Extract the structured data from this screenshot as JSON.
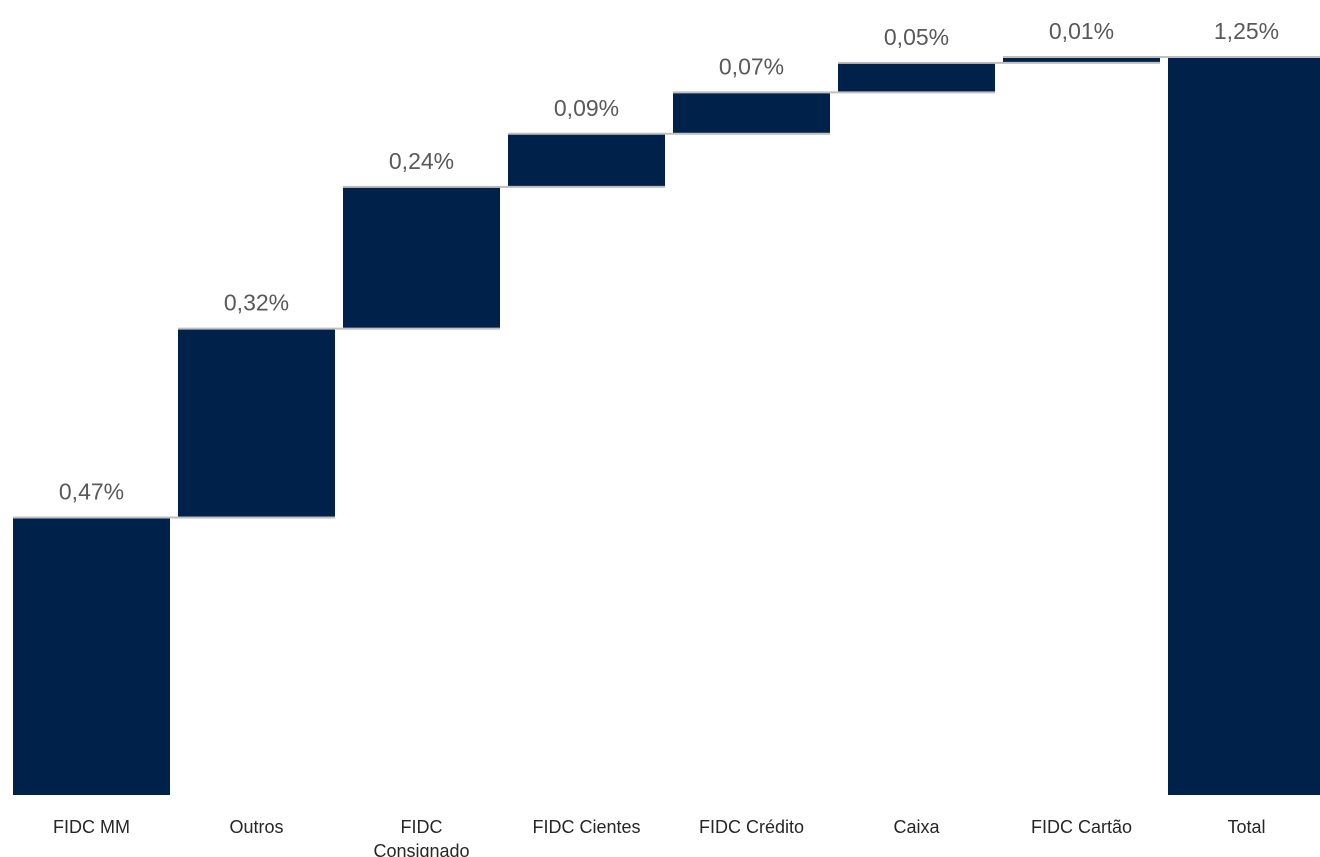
{
  "chart_data": {
    "type": "waterfall",
    "categories": [
      "FIDC MM",
      "Outros",
      "FIDC Consignado",
      "FIDC Cientes",
      "FIDC Crédito",
      "Caixa",
      "FIDC Cartão",
      "Total"
    ],
    "values": [
      0.47,
      0.32,
      0.24,
      0.09,
      0.07,
      0.05,
      0.01,
      1.25
    ],
    "value_labels": [
      "0,47%",
      "0,32%",
      "0,24%",
      "0,09%",
      "0,07%",
      "0,05%",
      "0,01%",
      "1,25%"
    ],
    "color": "#00224a"
  }
}
